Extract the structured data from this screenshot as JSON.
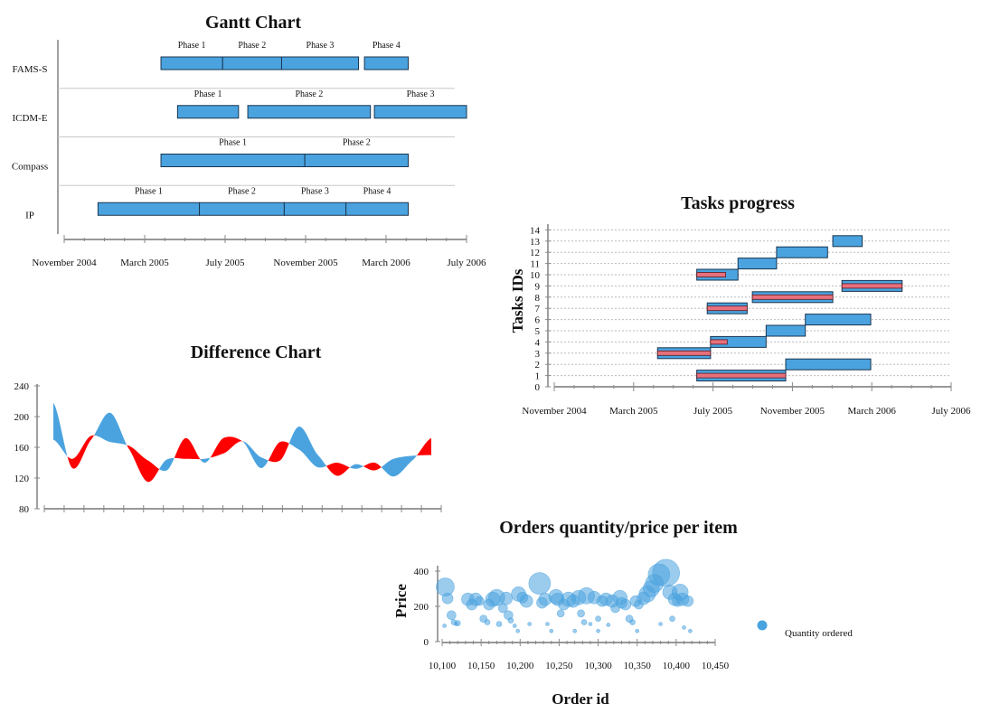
{
  "colors": {
    "blue": "#4aa3df",
    "red": "#ff0000",
    "pink": "#e8707c",
    "bubble": "#4aa3df"
  },
  "chart_data": [
    {
      "type": "gantt",
      "title": "Gantt Chart",
      "xlim": [
        "2004-11-01",
        "2006-07-01"
      ],
      "x_ticks": [
        "November 2004",
        "March 2005",
        "July 2005",
        "November 2005",
        "March 2006",
        "July 2006"
      ],
      "tasks": [
        {
          "name": "FAMS-S",
          "phases": [
            {
              "label": "Phase 1",
              "start": "2005-03-27",
              "end": "2005-06-28"
            },
            {
              "label": "Phase 2",
              "start": "2005-06-28",
              "end": "2005-09-25"
            },
            {
              "label": "Phase 3",
              "start": "2005-09-25",
              "end": "2006-01-19"
            },
            {
              "label": "Phase 4",
              "start": "2006-01-28",
              "end": "2006-04-04"
            }
          ]
        },
        {
          "name": "ICDM-E",
          "phases": [
            {
              "label": "Phase 1",
              "start": "2005-04-21",
              "end": "2005-07-22"
            },
            {
              "label": "Phase 2",
              "start": "2005-08-05",
              "end": "2006-02-06"
            },
            {
              "label": "Phase 3",
              "start": "2006-02-12",
              "end": "2006-07-01"
            }
          ]
        },
        {
          "name": "Compass",
          "phases": [
            {
              "label": "Phase 1",
              "start": "2005-03-27",
              "end": "2005-10-30"
            },
            {
              "label": "Phase 2",
              "start": "2005-10-30",
              "end": "2006-04-04"
            }
          ]
        },
        {
          "name": "IP",
          "phases": [
            {
              "label": "Phase 1",
              "start": "2004-12-22",
              "end": "2005-05-24"
            },
            {
              "label": "Phase 2",
              "start": "2005-05-24",
              "end": "2005-09-29"
            },
            {
              "label": "Phase 3",
              "start": "2005-09-29",
              "end": "2005-12-31"
            },
            {
              "label": "Phase 4",
              "start": "2005-12-31",
              "end": "2006-04-04"
            }
          ]
        }
      ]
    },
    {
      "type": "gantt-progress",
      "title": "Tasks progress",
      "ylabel": "Tasks IDs",
      "xlim": [
        "2004-11-01",
        "2006-07-01"
      ],
      "x_ticks": [
        "November 2004",
        "March 2005",
        "July 2005",
        "November 2005",
        "March 2006",
        "July 2006"
      ],
      "y_ticks": [
        0,
        1,
        2,
        3,
        4,
        5,
        6,
        7,
        8,
        9,
        10,
        11,
        12,
        13,
        14
      ],
      "tasks": [
        {
          "id": 1,
          "start": "2005-06-07",
          "end": "2005-10-21",
          "progress": 1.0
        },
        {
          "id": 2,
          "start": "2005-10-21",
          "end": "2006-02-28",
          "progress": 0
        },
        {
          "id": 3,
          "start": "2005-04-08",
          "end": "2005-06-28",
          "progress": 1.0
        },
        {
          "id": 4,
          "start": "2005-06-28",
          "end": "2005-09-21",
          "progress": 0.3
        },
        {
          "id": 5,
          "start": "2005-09-21",
          "end": "2005-11-20",
          "progress": 0
        },
        {
          "id": 6,
          "start": "2005-11-20",
          "end": "2006-02-28",
          "progress": 0
        },
        {
          "id": 7,
          "start": "2005-06-23",
          "end": "2005-08-23",
          "progress": 1.0
        },
        {
          "id": 8,
          "start": "2005-08-31",
          "end": "2006-01-01",
          "progress": 1.0
        },
        {
          "id": 9,
          "start": "2006-01-15",
          "end": "2006-04-17",
          "progress": 1.0
        },
        {
          "id": 10,
          "start": "2005-06-07",
          "end": "2005-08-09",
          "progress": 0.7
        },
        {
          "id": 11,
          "start": "2005-08-09",
          "end": "2005-10-07",
          "progress": 0
        },
        {
          "id": 12,
          "start": "2005-10-07",
          "end": "2005-12-24",
          "progress": 0
        },
        {
          "id": 13,
          "start": "2006-01-01",
          "end": "2006-02-15",
          "progress": 0
        }
      ]
    },
    {
      "type": "area",
      "title": "Difference Chart",
      "ylim": [
        80,
        240
      ],
      "y_ticks": [
        80,
        120,
        160,
        200,
        240
      ],
      "x_count": 21,
      "series": [
        {
          "values": [
            170,
            145,
            175,
            167,
            162,
            143,
            130,
            172,
            140,
            172,
            168,
            133,
            167,
            157,
            134,
            140,
            132,
            140,
            122,
            143,
            172
          ]
        },
        {
          "values": [
            218,
            133,
            170,
            205,
            158,
            115,
            144,
            145,
            145,
            152,
            168,
            147,
            143,
            187,
            150,
            123,
            138,
            130,
            145,
            149,
            150
          ]
        }
      ]
    },
    {
      "type": "scatter",
      "title": "Orders quantity/price per item",
      "xlabel": "Order id",
      "ylabel": "Price",
      "xlim": [
        10100,
        10450
      ],
      "ylim": [
        0,
        400
      ],
      "x_ticks": [
        "10,100",
        "10,150",
        "10,200",
        "10,250",
        "10,300",
        "10,350",
        "10,400",
        "10,450"
      ],
      "y_ticks": [
        0,
        200,
        400
      ],
      "legend": "Quantity ordered",
      "points": [
        [
          10104,
          310,
          10
        ],
        [
          10107,
          245,
          6
        ],
        [
          10112,
          150,
          5
        ],
        [
          10115,
          110,
          3
        ],
        [
          10118,
          100,
          2
        ],
        [
          10120,
          105,
          3
        ],
        [
          10103,
          90,
          2
        ],
        [
          10133,
          240,
          7
        ],
        [
          10138,
          210,
          6
        ],
        [
          10143,
          240,
          7
        ],
        [
          10148,
          230,
          5
        ],
        [
          10153,
          130,
          4
        ],
        [
          10158,
          110,
          3
        ],
        [
          10160,
          210,
          6
        ],
        [
          10165,
          240,
          8
        ],
        [
          10170,
          250,
          9
        ],
        [
          10173,
          100,
          3
        ],
        [
          10178,
          190,
          5
        ],
        [
          10182,
          245,
          7
        ],
        [
          10185,
          150,
          5
        ],
        [
          10188,
          120,
          3
        ],
        [
          10193,
          90,
          2
        ],
        [
          10197,
          60,
          2
        ],
        [
          10198,
          270,
          8
        ],
        [
          10203,
          250,
          6
        ],
        [
          10208,
          230,
          7
        ],
        [
          10212,
          100,
          2
        ],
        [
          10225,
          330,
          12
        ],
        [
          10228,
          220,
          6
        ],
        [
          10232,
          240,
          7
        ],
        [
          10235,
          100,
          2
        ],
        [
          10240,
          60,
          2
        ],
        [
          10246,
          255,
          8
        ],
        [
          10248,
          240,
          7
        ],
        [
          10252,
          160,
          4
        ],
        [
          10256,
          210,
          6
        ],
        [
          10262,
          240,
          8
        ],
        [
          10268,
          230,
          7
        ],
        [
          10275,
          250,
          8
        ],
        [
          10278,
          160,
          4
        ],
        [
          10282,
          110,
          3
        ],
        [
          10285,
          260,
          9
        ],
        [
          10290,
          100,
          2
        ],
        [
          10295,
          250,
          7
        ],
        [
          10300,
          130,
          3
        ],
        [
          10305,
          230,
          6
        ],
        [
          10310,
          240,
          7
        ],
        [
          10313,
          95,
          2
        ],
        [
          10318,
          230,
          7
        ],
        [
          10322,
          190,
          5
        ],
        [
          10328,
          250,
          8
        ],
        [
          10330,
          220,
          6
        ],
        [
          10335,
          210,
          6
        ],
        [
          10340,
          130,
          4
        ],
        [
          10344,
          110,
          3
        ],
        [
          10348,
          230,
          6
        ],
        [
          10352,
          210,
          5
        ],
        [
          10358,
          245,
          7
        ],
        [
          10363,
          270,
          9
        ],
        [
          10368,
          300,
          9
        ],
        [
          10372,
          330,
          10
        ],
        [
          10378,
          380,
          12
        ],
        [
          10387,
          390,
          15
        ],
        [
          10392,
          280,
          8
        ],
        [
          10395,
          130,
          3
        ],
        [
          10398,
          240,
          7
        ],
        [
          10402,
          230,
          6
        ],
        [
          10405,
          280,
          9
        ],
        [
          10408,
          240,
          7
        ],
        [
          10415,
          230,
          6
        ],
        [
          10418,
          60,
          2
        ],
        [
          10410,
          80,
          2
        ],
        [
          10270,
          60,
          2
        ],
        [
          10300,
          60,
          2
        ],
        [
          10350,
          60,
          2
        ],
        [
          10380,
          100,
          2
        ]
      ]
    }
  ]
}
